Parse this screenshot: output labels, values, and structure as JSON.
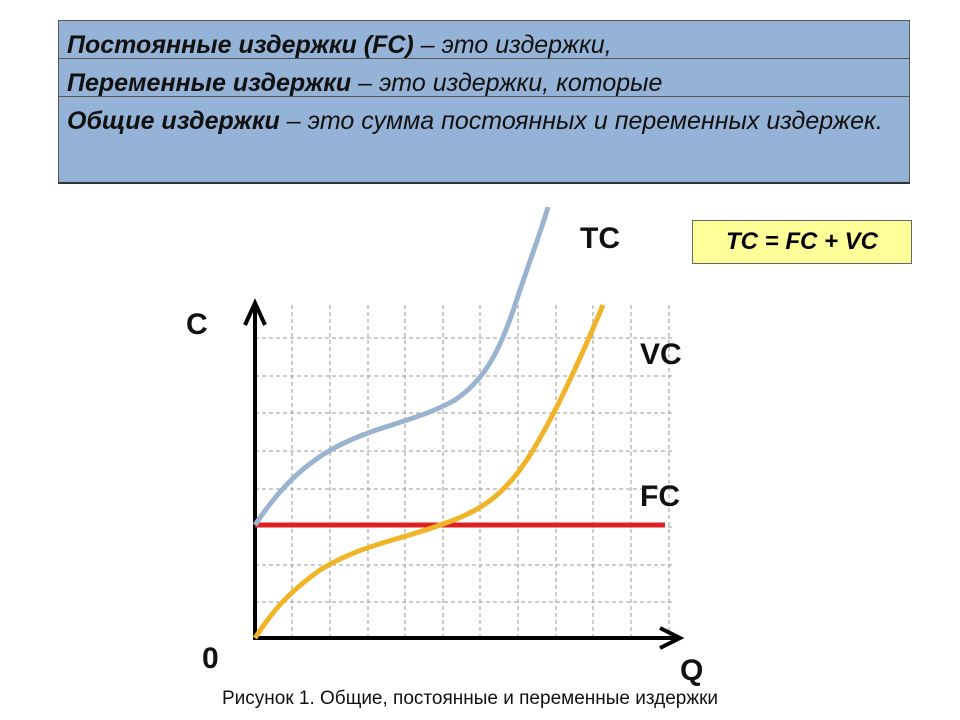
{
  "definitions": [
    {
      "term": "Постоянные издержки (FC)",
      "text": " – это издержки,"
    },
    {
      "term": "Переменные издержки",
      "text": " – это издержки, которые"
    },
    {
      "term": "Общие издержки",
      "text": " – это сумма постоянных и переменных издержек."
    }
  ],
  "diagram": {
    "curve_labels": {
      "tc": "TC",
      "vc": "VC",
      "fc": "FC"
    },
    "axis_labels": {
      "y": "C",
      "x": "Q",
      "origin": "0"
    },
    "formula": "TC = FC + VC",
    "caption": "Рисунок 1. Общие, постоянные и переменные издержки"
  }
}
